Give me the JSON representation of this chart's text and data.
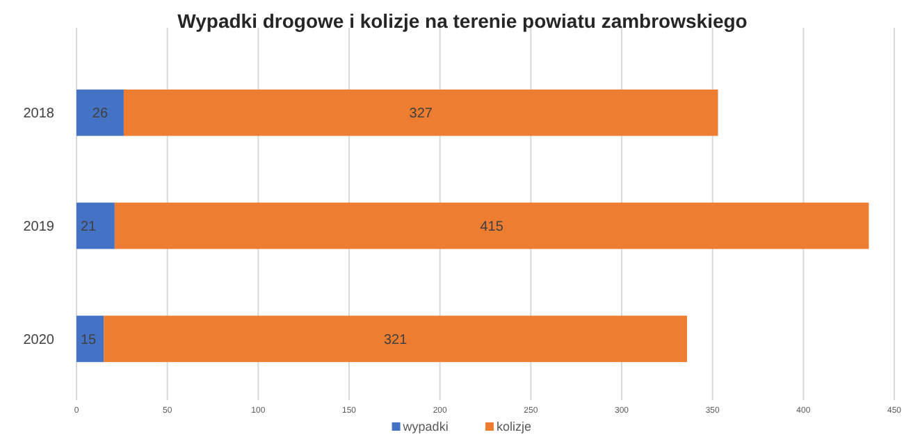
{
  "chart_data": {
    "type": "bar",
    "title": "Wypadki drogowe i kolizje na terenie powiatu zambrowskiego",
    "orientation": "horizontal",
    "stacked": true,
    "categories": [
      "2018",
      "2019",
      "2020"
    ],
    "series": [
      {
        "name": "wypadki",
        "color": "#4472c4",
        "values": [
          26,
          21,
          15
        ]
      },
      {
        "name": "kolizje",
        "color": "#ed7d31",
        "values": [
          327,
          415,
          321
        ]
      }
    ],
    "xlim": [
      0,
      450
    ],
    "xticks": [
      0,
      50,
      100,
      150,
      200,
      250,
      300,
      350,
      400,
      450
    ],
    "grid": "x",
    "legend": "bottom",
    "data_labels": true
  }
}
